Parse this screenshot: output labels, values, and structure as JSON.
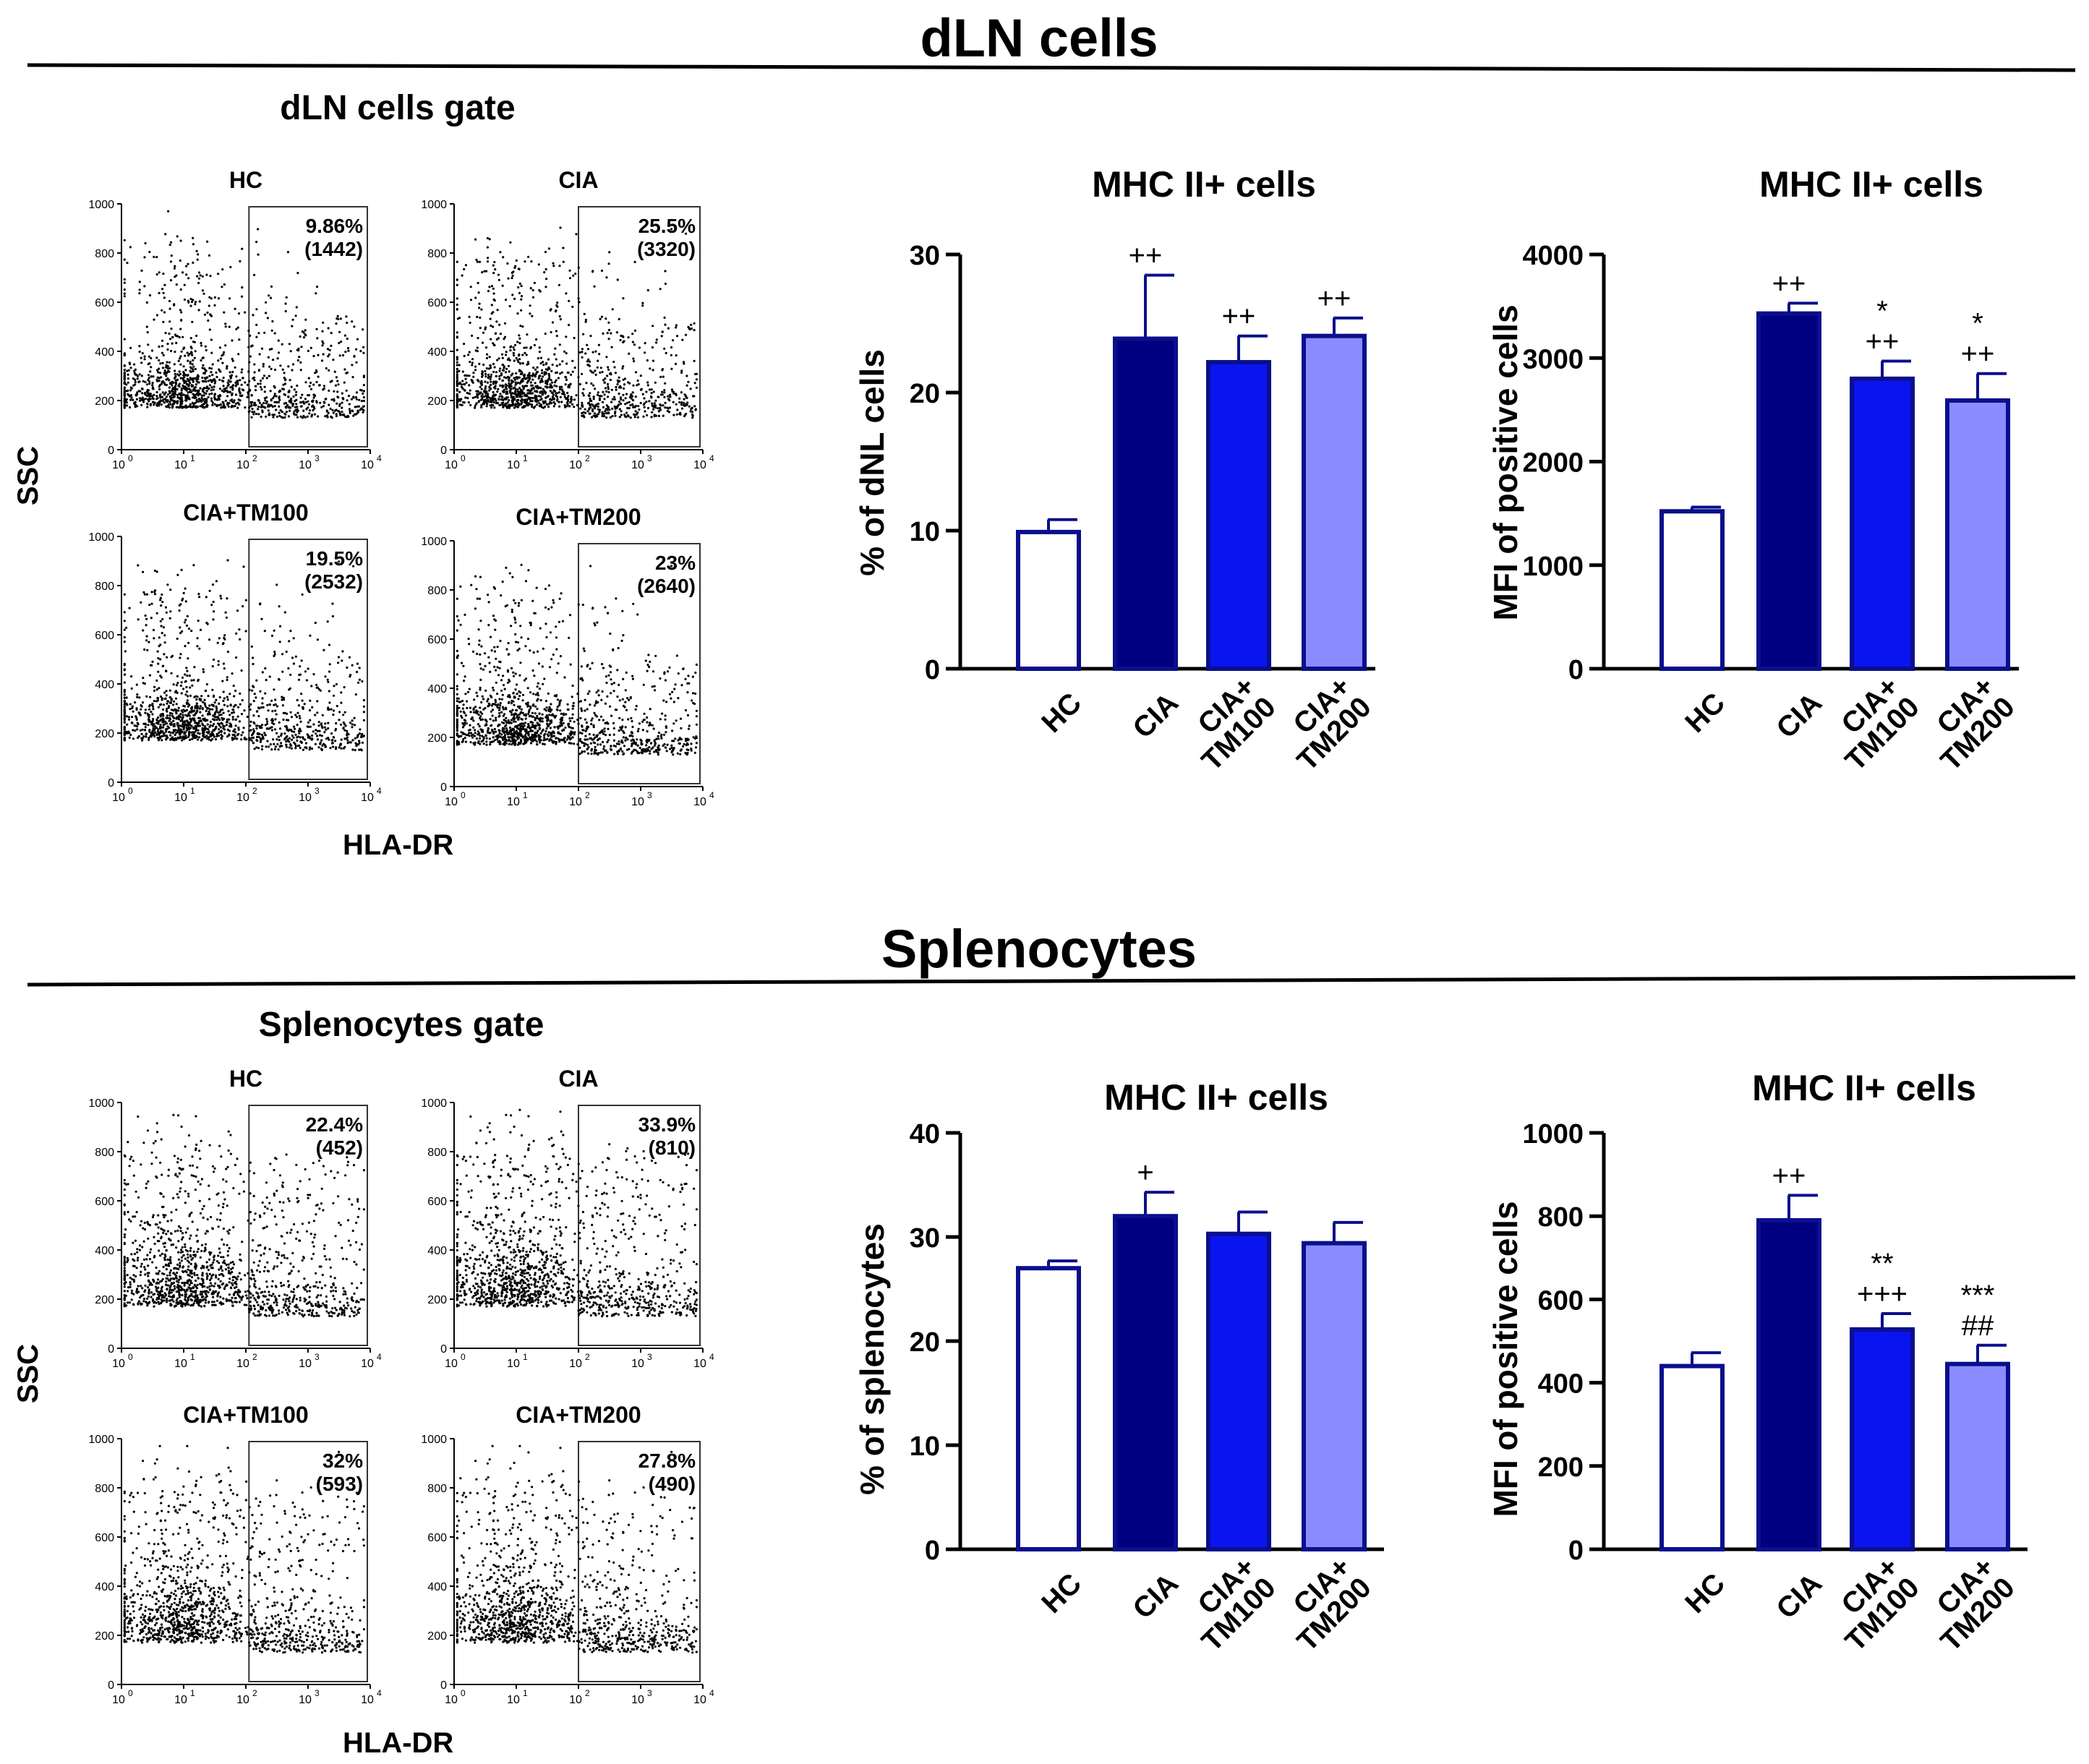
{
  "sections": [
    {
      "title": "dLN cells",
      "gate_title": "dLN cells gate",
      "scatter_axis_y": "SSC",
      "scatter_axis_x": "HLA-DR",
      "scatter_panels": [
        {
          "name": "HC",
          "percent": "9.86%",
          "count": "(1442)",
          "gate_from_decade": 2.05
        },
        {
          "name": "CIA",
          "percent": "25.5%",
          "count": "(3320)",
          "gate_from_decade": 2.0
        },
        {
          "name": "CIA+TM100",
          "percent": "19.5%",
          "count": "(2532)",
          "gate_from_decade": 2.05
        },
        {
          "name": "CIA+TM200",
          "percent": "23%",
          "count": "(2640)",
          "gate_from_decade": 2.0
        }
      ]
    },
    {
      "title": "Splenocytes",
      "gate_title": "Splenocytes gate",
      "scatter_axis_y": "SSC",
      "scatter_axis_x": "HLA-DR",
      "scatter_panels": [
        {
          "name": "HC",
          "percent": "22.4%",
          "count": "(452)",
          "gate_from_decade": 2.05
        },
        {
          "name": "CIA",
          "percent": "33.9%",
          "count": "(810)",
          "gate_from_decade": 2.0
        },
        {
          "name": "CIA+TM100",
          "percent": "32%",
          "count": "(593)",
          "gate_from_decade": 2.05
        },
        {
          "name": "CIA+TM200",
          "percent": "27.8%",
          "count": "(490)",
          "gate_from_decade": 2.0
        }
      ]
    }
  ],
  "scatter_axes": {
    "y_ticks": [
      "0",
      "200",
      "400",
      "600",
      "800",
      "1000"
    ],
    "x_ticks": [
      "10",
      "10",
      "10",
      "10",
      "10"
    ],
    "x_tick_exponents": [
      "0",
      "1",
      "2",
      "3",
      "4"
    ]
  },
  "colors": {
    "HC": "#ffffff",
    "CIA": "#000080",
    "CIA+TM100": "#0a14f0",
    "CIA+TM200": "#8a8cff",
    "edge": "#0a0f8c"
  },
  "chart_data": [
    {
      "type": "bar",
      "title": "MHC II+ cells",
      "ylabel": "% of dNL cells",
      "xlabel": "",
      "ylim": [
        0,
        30
      ],
      "yticks": [
        0,
        10,
        20,
        30
      ],
      "categories": [
        "HC",
        "CIA",
        "CIA+\nTM100",
        "CIA+\nTM200"
      ],
      "values": [
        9.9,
        23.9,
        22.2,
        24.1
      ],
      "errors": [
        0.9,
        4.6,
        1.9,
        1.3
      ],
      "annotations": [
        [],
        [
          "++"
        ],
        [
          "++"
        ],
        [
          "++"
        ]
      ]
    },
    {
      "type": "bar",
      "title": "MHC II+ cells",
      "ylabel": "MFI of positive cells",
      "xlabel": "",
      "ylim": [
        0,
        4000
      ],
      "yticks": [
        0,
        1000,
        2000,
        3000,
        4000
      ],
      "categories": [
        "HC",
        "CIA",
        "CIA+\nTM100",
        "CIA+\nTM200"
      ],
      "values": [
        1520,
        3430,
        2800,
        2590
      ],
      "errors": [
        40,
        100,
        170,
        260
      ],
      "annotations": [
        [],
        [
          "++"
        ],
        [
          "*",
          "++"
        ],
        [
          "*",
          "++"
        ]
      ]
    },
    {
      "type": "bar",
      "title": "MHC II+ cells",
      "ylabel": "% of splenocytes",
      "xlabel": "",
      "ylim": [
        0,
        40
      ],
      "yticks": [
        0,
        10,
        20,
        30,
        40
      ],
      "categories": [
        "HC",
        "CIA",
        "CIA+\nTM100",
        "CIA+\nTM200"
      ],
      "values": [
        27.0,
        32.0,
        30.3,
        29.4
      ],
      "errors": [
        0.7,
        2.3,
        2.1,
        2.0
      ],
      "annotations": [
        [],
        [
          "+"
        ],
        [],
        []
      ]
    },
    {
      "type": "bar",
      "title": "MHC II+ cells",
      "ylabel": "MFI of positive cells",
      "xlabel": "",
      "ylim": [
        0,
        1000
      ],
      "yticks": [
        0,
        200,
        400,
        600,
        800,
        1000
      ],
      "categories": [
        "HC",
        "CIA",
        "CIA+\nTM100",
        "CIA+\nTM200"
      ],
      "values": [
        440,
        790,
        528,
        445
      ],
      "errors": [
        32,
        60,
        38,
        45
      ],
      "annotations": [
        [],
        [
          "++"
        ],
        [
          "**",
          "+++"
        ],
        [
          "***",
          "##"
        ]
      ]
    }
  ]
}
